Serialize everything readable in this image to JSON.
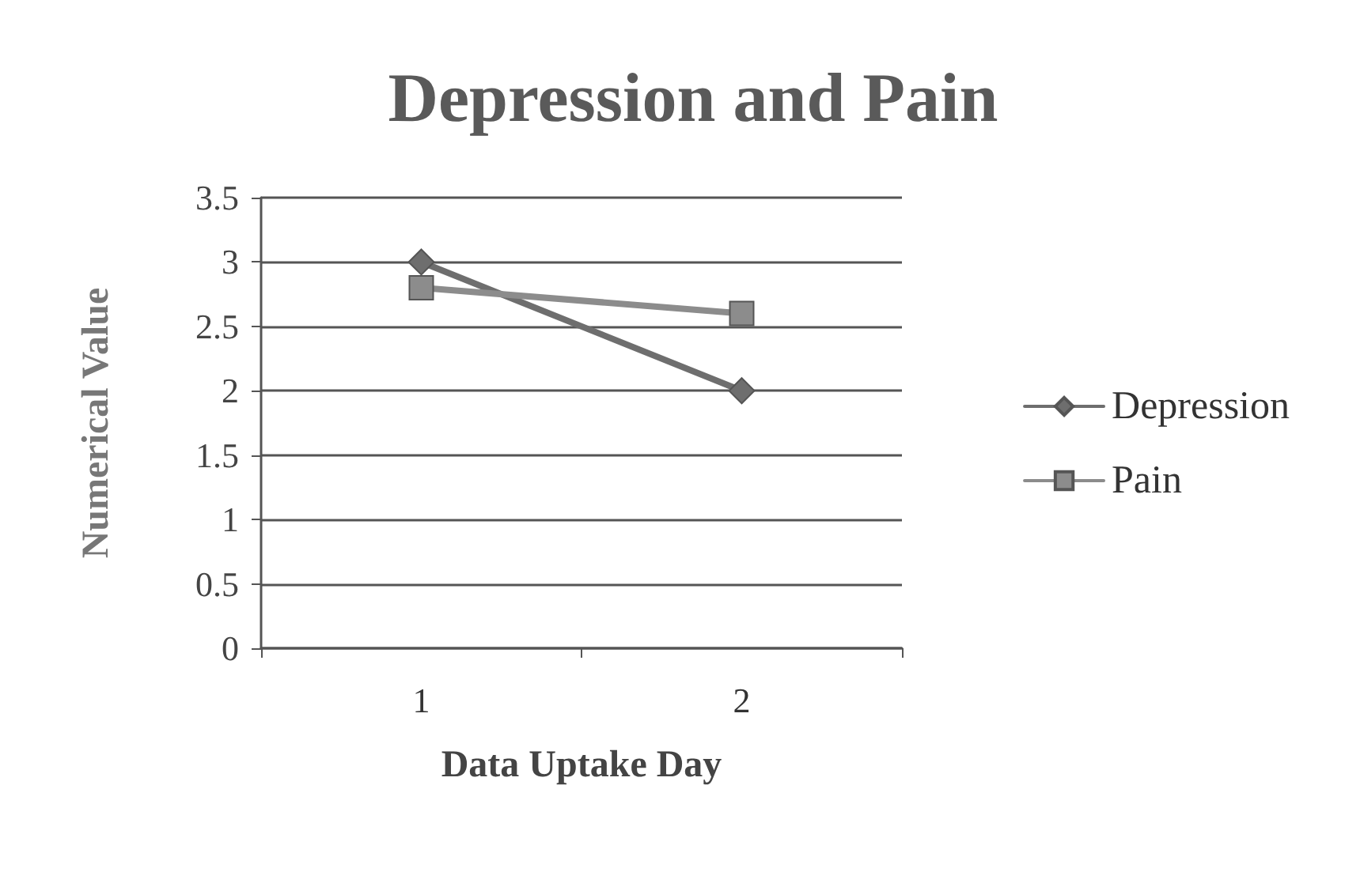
{
  "chart_data": {
    "type": "line",
    "title": "Depression and Pain",
    "xlabel": "Data Uptake Day",
    "ylabel": "Numerical Value",
    "categories": [
      "1",
      "2"
    ],
    "series": [
      {
        "name": "Depression",
        "color": "#6e6e6e",
        "values": [
          3,
          2
        ],
        "marker": "diamond"
      },
      {
        "name": "Pain",
        "color": "#8c8c8c",
        "values": [
          2.8,
          2.6
        ],
        "marker": "square"
      }
    ],
    "ylim": [
      0,
      3.5
    ],
    "yticks": [
      0,
      0.5,
      1,
      1.5,
      2,
      2.5,
      3,
      3.5
    ],
    "grid": "y",
    "legend": "right",
    "line_style": "solid"
  }
}
